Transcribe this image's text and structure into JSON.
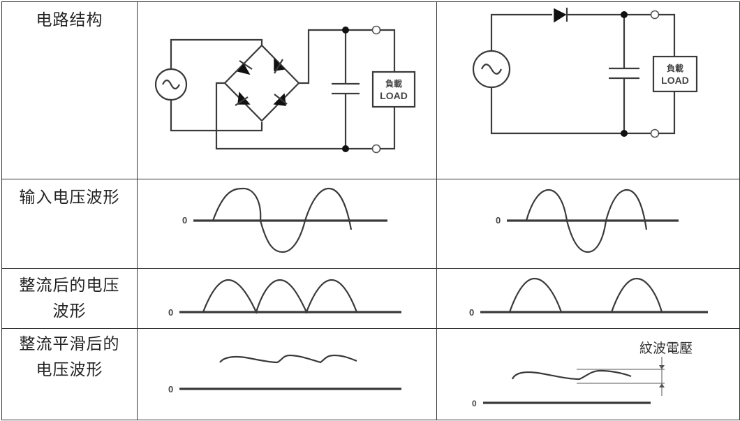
{
  "rows": {
    "circuit": {
      "label": "电路结构"
    },
    "input": {
      "label": "输入电压波形"
    },
    "rectified": {
      "label_line1": "整流后的电压",
      "label_line2": "波形"
    },
    "smoothed": {
      "label_line1": "整流平滑后的",
      "label_line2": "电压波形"
    }
  },
  "circuit": {
    "load_label_jp": "負載",
    "load_label_en": "LOAD"
  },
  "axis_zero": "0",
  "ripple_label": "紋波電壓"
}
